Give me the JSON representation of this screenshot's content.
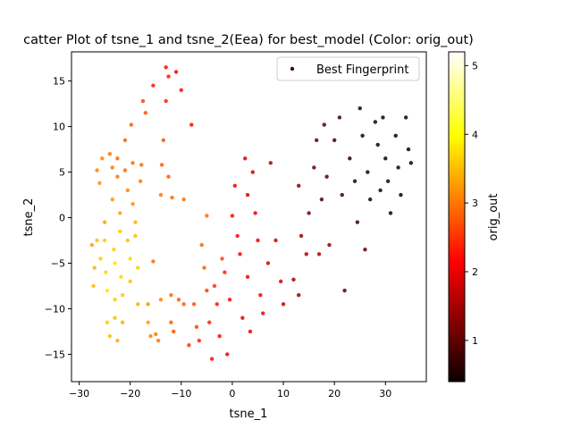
{
  "chart_data": {
    "type": "scatter",
    "title": "catter Plot of tsne_1 and tsne_2(Eea) for best_model (Color: orig_out)",
    "xlabel": "tsne_1",
    "ylabel": "tsne_2",
    "xlim": [
      -31.5,
      38
    ],
    "ylim": [
      -18,
      18.2
    ],
    "xticks": [
      -30,
      -20,
      -10,
      0,
      10,
      20,
      30
    ],
    "yticks": [
      -15,
      -10,
      -5,
      0,
      5,
      10,
      15
    ],
    "xtick_labels": [
      "−30",
      "−20",
      "−10",
      "0",
      "10",
      "20",
      "30"
    ],
    "ytick_labels": [
      "−15",
      "−10",
      "−5",
      "0",
      "5",
      "10",
      "15"
    ],
    "grid": false,
    "legend": {
      "position": "top-right",
      "entries": [
        "Best Fingerprint"
      ]
    },
    "colorbar": {
      "label": "orig_out",
      "colormap": "hot",
      "range": [
        0.4,
        5.2
      ],
      "ticks": [
        1,
        2,
        3,
        4,
        5
      ],
      "tick_labels": [
        "1",
        "2",
        "3",
        "4",
        "5"
      ]
    },
    "series": [
      {
        "name": "Best Fingerprint",
        "points": [
          [
            -27.5,
            -3.0,
            3.3
          ],
          [
            -27,
            -5.5,
            3.4
          ],
          [
            -27.2,
            -7.5,
            3.5
          ],
          [
            -26.5,
            5.2,
            3.1
          ],
          [
            -26,
            3.8,
            3.2
          ],
          [
            -26.5,
            -2.5,
            3.5
          ],
          [
            -25.8,
            -4.5,
            3.6
          ],
          [
            -25.5,
            6.5,
            3.1
          ],
          [
            -25,
            -0.5,
            3.3
          ],
          [
            -25,
            -2.5,
            3.6
          ],
          [
            -24.8,
            -6.0,
            3.7
          ],
          [
            -24.5,
            -8.0,
            3.8
          ],
          [
            -24.5,
            -11.5,
            3.6
          ],
          [
            -24,
            -13.0,
            3.5
          ],
          [
            -24,
            7.0,
            3.0
          ],
          [
            -23.5,
            5.5,
            3.0
          ],
          [
            -23.5,
            2.0,
            3.2
          ],
          [
            -23.2,
            -3.5,
            3.6
          ],
          [
            -23,
            -5.0,
            3.8
          ],
          [
            -23,
            -9.0,
            3.6
          ],
          [
            -23,
            -11.0,
            3.5
          ],
          [
            -22.5,
            -13.5,
            3.4
          ],
          [
            -22.5,
            6.5,
            2.9
          ],
          [
            -22.5,
            4.5,
            3.0
          ],
          [
            -22,
            0.5,
            3.3
          ],
          [
            -22,
            -1.5,
            3.6
          ],
          [
            -21.8,
            -6.5,
            3.7
          ],
          [
            -21.5,
            -8.5,
            3.6
          ],
          [
            -21.5,
            -11.5,
            3.4
          ],
          [
            -21,
            8.5,
            2.8
          ],
          [
            -21,
            5.2,
            2.9
          ],
          [
            -20.5,
            3.0,
            3.1
          ],
          [
            -20.5,
            -2.5,
            3.5
          ],
          [
            -20,
            -4.5,
            3.7
          ],
          [
            -20,
            -7.0,
            3.5
          ],
          [
            -19.8,
            10.2,
            2.8
          ],
          [
            -19.5,
            6.0,
            2.9
          ],
          [
            -19.5,
            1.5,
            3.2
          ],
          [
            -19,
            -0.5,
            3.4
          ],
          [
            -19,
            -2.0,
            3.5
          ],
          [
            -18.5,
            -5.5,
            3.6
          ],
          [
            -18.5,
            -9.5,
            3.4
          ],
          [
            -18,
            4.0,
            3.0
          ],
          [
            -17.8,
            5.8,
            2.9
          ],
          [
            -17.5,
            12.8,
            2.6
          ],
          [
            -17,
            11.5,
            2.7
          ],
          [
            -16.5,
            -9.5,
            3.2
          ],
          [
            -16.5,
            -11.5,
            3.3
          ],
          [
            -16,
            -13.0,
            3.1
          ],
          [
            -15.5,
            -4.8,
            2.9
          ],
          [
            -15.5,
            14.5,
            2.3
          ],
          [
            -15,
            -12.8,
            3.0
          ],
          [
            -14.5,
            -13.5,
            3.0
          ],
          [
            -14,
            -9.0,
            3.1
          ],
          [
            -14,
            2.5,
            3.0
          ],
          [
            -13.8,
            5.8,
            2.8
          ],
          [
            -13.5,
            8.5,
            2.7
          ],
          [
            -13,
            16.5,
            2.2
          ],
          [
            -13,
            12.8,
            2.4
          ],
          [
            -12.5,
            15.5,
            2.3
          ],
          [
            -12.5,
            4.5,
            2.8
          ],
          [
            -12,
            -8.5,
            2.9
          ],
          [
            -12,
            -11.5,
            2.8
          ],
          [
            -11.8,
            2.2,
            2.9
          ],
          [
            -11.5,
            -12.5,
            2.7
          ],
          [
            -11,
            16.0,
            2.1
          ],
          [
            -10.5,
            -9.0,
            2.8
          ],
          [
            -10,
            14.0,
            2.2
          ],
          [
            -9.5,
            -9.5,
            2.8
          ],
          [
            -9.5,
            2.0,
            2.9
          ],
          [
            -8.5,
            -14.0,
            2.5
          ],
          [
            -8,
            10.2,
            2.1
          ],
          [
            -7.5,
            -9.5,
            2.7
          ],
          [
            -7,
            -12.0,
            2.6
          ],
          [
            -6.5,
            -13.5,
            2.4
          ],
          [
            -6,
            -3.0,
            2.9
          ],
          [
            -5.5,
            -5.5,
            2.8
          ],
          [
            -5,
            0.2,
            2.9
          ],
          [
            -5,
            -8.0,
            2.6
          ],
          [
            -4.5,
            -11.5,
            2.4
          ],
          [
            -4,
            -15.5,
            2.2
          ],
          [
            -3.5,
            -7.5,
            2.5
          ],
          [
            -3,
            -9.5,
            2.3
          ],
          [
            -2.5,
            -13.0,
            2.2
          ],
          [
            -2,
            -4.5,
            2.6
          ],
          [
            -1.5,
            -6.0,
            2.4
          ],
          [
            -1,
            -15.0,
            2.0
          ],
          [
            -0.5,
            -9.0,
            2.2
          ],
          [
            0,
            0.2,
            2.2
          ],
          [
            0.5,
            3.5,
            2.0
          ],
          [
            1,
            -2.0,
            2.2
          ],
          [
            1.5,
            -4.0,
            2.1
          ],
          [
            2,
            -11.0,
            1.9
          ],
          [
            2.5,
            6.5,
            1.8
          ],
          [
            3,
            2.5,
            1.8
          ],
          [
            3,
            -6.5,
            2.0
          ],
          [
            3.5,
            -12.5,
            1.9
          ],
          [
            4,
            5.0,
            1.7
          ],
          [
            4.5,
            0.5,
            1.9
          ],
          [
            5,
            -2.5,
            1.9
          ],
          [
            5.5,
            -8.5,
            2.1
          ],
          [
            6,
            -10.5,
            2.0
          ],
          [
            7,
            -5.0,
            1.8
          ],
          [
            7.5,
            6.0,
            1.5
          ],
          [
            8.5,
            -2.5,
            1.7
          ],
          [
            9.5,
            -7.0,
            1.8
          ],
          [
            10,
            -9.5,
            1.7
          ],
          [
            12,
            -6.8,
            1.4
          ],
          [
            13,
            -8.5,
            1.3
          ],
          [
            13,
            3.5,
            1.2
          ],
          [
            13.5,
            -2.0,
            1.4
          ],
          [
            14.5,
            -4.0,
            1.5
          ],
          [
            15,
            0.5,
            1.1
          ],
          [
            16,
            5.5,
            1.0
          ],
          [
            16.5,
            8.5,
            0.9
          ],
          [
            17,
            -4.0,
            1.5
          ],
          [
            17.5,
            2.0,
            0.9
          ],
          [
            18,
            10.2,
            0.8
          ],
          [
            18.5,
            4.5,
            0.8
          ],
          [
            19,
            -3.0,
            1.3
          ],
          [
            20,
            8.5,
            0.7
          ],
          [
            21,
            11.0,
            0.7
          ],
          [
            21.5,
            2.5,
            0.7
          ],
          [
            22,
            -8.0,
            1.0
          ],
          [
            23,
            6.5,
            0.6
          ],
          [
            24,
            4.0,
            0.6
          ],
          [
            24.5,
            -0.5,
            0.7
          ],
          [
            25,
            12.0,
            0.5
          ],
          [
            25.5,
            9.0,
            0.5
          ],
          [
            26,
            -3.5,
            1.0
          ],
          [
            26.5,
            5.0,
            0.5
          ],
          [
            27,
            2.0,
            0.5
          ],
          [
            28,
            10.5,
            0.5
          ],
          [
            28.5,
            8.0,
            0.5
          ],
          [
            29,
            3.0,
            0.5
          ],
          [
            29.5,
            11.0,
            0.4
          ],
          [
            30,
            6.5,
            0.4
          ],
          [
            30.5,
            4.0,
            0.5
          ],
          [
            31,
            0.5,
            0.5
          ],
          [
            32,
            9.0,
            0.4
          ],
          [
            32.5,
            5.5,
            0.5
          ],
          [
            33,
            2.5,
            0.4
          ],
          [
            34,
            11.0,
            0.4
          ],
          [
            34.5,
            7.5,
            0.4
          ],
          [
            35,
            6.0,
            0.4
          ]
        ]
      }
    ]
  }
}
